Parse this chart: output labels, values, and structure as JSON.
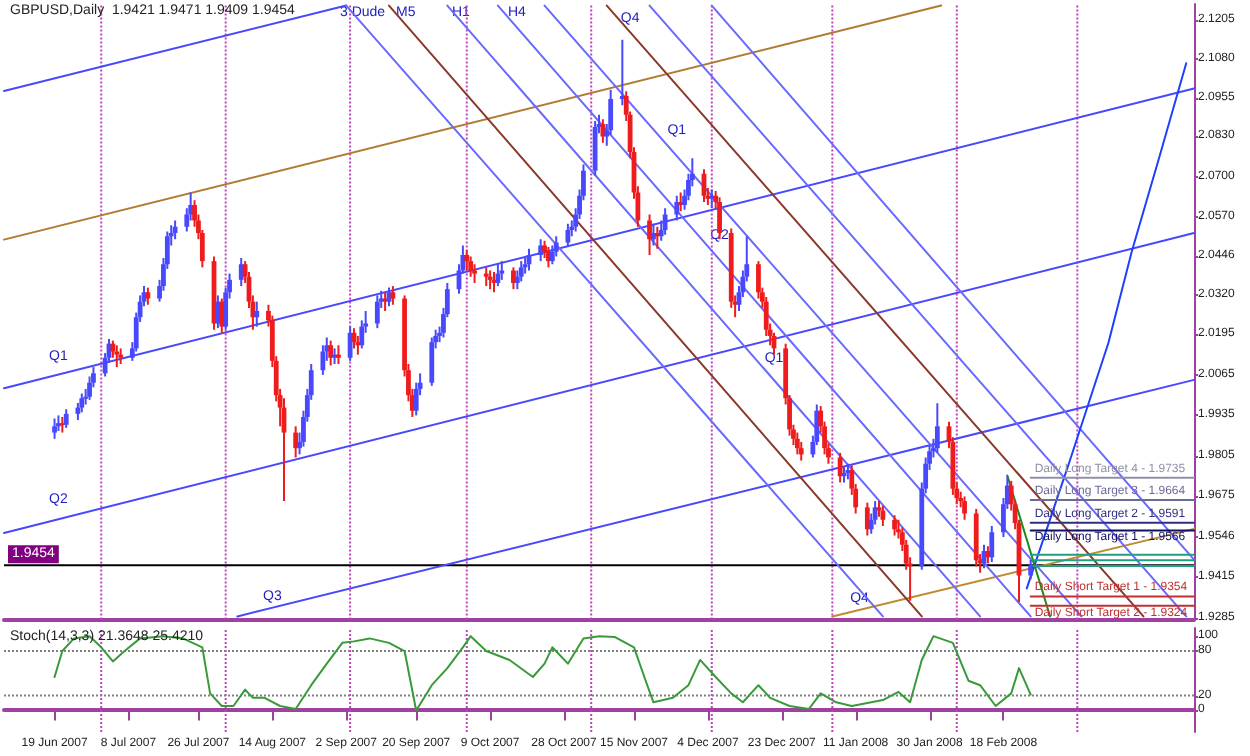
{
  "chart_data": [
    {
      "type": "candlestick",
      "title": "GBPUSD,Daily  1.9421 1.9471 1.9409 1.9454",
      "x": [
        "2007-06-19",
        "2007-06-20",
        "2007-06-21",
        "2007-06-22",
        "2007-06-25",
        "2007-06-26",
        "2007-06-27",
        "2007-06-28",
        "2007-06-29",
        "2007-07-02",
        "2007-07-03",
        "2007-07-04",
        "2007-07-05",
        "2007-07-06",
        "2007-07-09",
        "2007-07-10",
        "2007-07-11",
        "2007-07-12",
        "2007-07-13",
        "2007-07-16",
        "2007-07-17",
        "2007-07-18",
        "2007-07-19",
        "2007-07-20",
        "2007-07-23",
        "2007-07-24",
        "2007-07-25",
        "2007-07-26",
        "2007-07-27",
        "2007-07-30",
        "2007-07-31",
        "2007-08-01",
        "2007-08-02",
        "2007-08-03",
        "2007-08-06",
        "2007-08-07",
        "2007-08-08",
        "2007-08-09",
        "2007-08-10",
        "2007-08-13",
        "2007-08-14",
        "2007-08-15",
        "2007-08-16",
        "2007-08-17",
        "2007-08-20",
        "2007-08-21",
        "2007-08-22",
        "2007-08-23",
        "2007-08-24",
        "2007-08-27",
        "2007-08-28",
        "2007-08-29",
        "2007-08-30",
        "2007-08-31",
        "2007-09-03",
        "2007-09-04",
        "2007-09-05",
        "2007-09-06",
        "2007-09-07",
        "2007-09-10",
        "2007-09-11",
        "2007-09-12",
        "2007-09-13",
        "2007-09-14",
        "2007-09-17",
        "2007-09-18",
        "2007-09-19",
        "2007-09-20",
        "2007-09-21",
        "2007-09-24",
        "2007-09-25",
        "2007-09-26",
        "2007-09-27",
        "2007-09-28",
        "2007-10-01",
        "2007-10-02",
        "2007-10-03",
        "2007-10-04",
        "2007-10-05",
        "2007-10-08",
        "2007-10-09",
        "2007-10-10",
        "2007-10-11",
        "2007-10-12",
        "2007-10-15",
        "2007-10-16",
        "2007-10-17",
        "2007-10-18",
        "2007-10-19",
        "2007-10-22",
        "2007-10-23",
        "2007-10-24",
        "2007-10-25",
        "2007-10-26",
        "2007-10-29",
        "2007-10-30",
        "2007-10-31",
        "2007-11-01",
        "2007-11-02",
        "2007-11-05",
        "2007-11-06",
        "2007-11-07",
        "2007-11-08",
        "2007-11-09",
        "2007-11-12",
        "2007-11-13",
        "2007-11-14",
        "2007-11-15",
        "2007-11-16",
        "2007-11-19",
        "2007-11-20",
        "2007-11-21",
        "2007-11-22",
        "2007-11-23",
        "2007-11-26",
        "2007-11-27",
        "2007-11-28",
        "2007-11-29",
        "2007-11-30",
        "2007-12-03",
        "2007-12-04",
        "2007-12-05",
        "2007-12-06",
        "2007-12-07",
        "2007-12-10",
        "2007-12-11",
        "2007-12-12",
        "2007-12-13",
        "2007-12-14",
        "2007-12-17",
        "2007-12-18",
        "2007-12-19",
        "2007-12-20",
        "2007-12-21",
        "2007-12-24",
        "2007-12-25",
        "2007-12-26",
        "2007-12-27",
        "2007-12-28",
        "2007-12-31",
        "2008-01-01",
        "2008-01-02",
        "2008-01-03",
        "2008-01-04",
        "2008-01-07",
        "2008-01-08",
        "2008-01-09",
        "2008-01-10",
        "2008-01-11",
        "2008-01-14",
        "2008-01-15",
        "2008-01-16",
        "2008-01-17",
        "2008-01-18",
        "2008-01-21",
        "2008-01-22",
        "2008-01-23",
        "2008-01-24",
        "2008-01-25",
        "2008-01-28",
        "2008-01-29",
        "2008-01-30",
        "2008-01-31",
        "2008-02-01",
        "2008-02-04",
        "2008-02-05",
        "2008-02-06",
        "2008-02-07",
        "2008-02-08",
        "2008-02-11",
        "2008-02-12",
        "2008-02-13",
        "2008-02-14",
        "2008-02-15",
        "2008-02-18",
        "2008-02-19",
        "2008-02-20",
        "2008-02-21",
        "2008-02-22",
        "2008-02-25"
      ],
      "ohlc": [
        [
          1.988,
          1.9925,
          1.986,
          1.99
        ],
        [
          1.99,
          1.9935,
          1.9885,
          1.991
        ],
        [
          1.991,
          1.993,
          1.988,
          1.9905
        ],
        [
          1.9905,
          1.9955,
          1.9895,
          1.994
        ],
        [
          1.994,
          1.9975,
          1.992,
          1.996
        ],
        [
          1.996,
          2.0005,
          1.9945,
          1.999
        ],
        [
          1.999,
          2.002,
          1.997,
          1.9995
        ],
        [
          1.9995,
          2.006,
          1.9985,
          2.004
        ],
        [
          2.004,
          2.009,
          2.0025,
          2.007
        ],
        [
          2.007,
          2.0135,
          2.006,
          2.012
        ],
        [
          2.012,
          2.018,
          2.0105,
          2.0165
        ],
        [
          2.0165,
          2.0175,
          2.012,
          2.014
        ],
        [
          2.014,
          2.016,
          2.009,
          2.013
        ],
        [
          2.013,
          2.015,
          2.01,
          2.012
        ],
        [
          2.012,
          2.017,
          2.011,
          2.015
        ],
        [
          2.015,
          2.0265,
          2.014,
          2.025
        ],
        [
          2.025,
          2.032,
          2.0235,
          2.03
        ],
        [
          2.03,
          2.035,
          2.0285,
          2.033
        ],
        [
          2.033,
          2.0345,
          2.029,
          2.031
        ],
        [
          2.031,
          2.037,
          2.03,
          2.035
        ],
        [
          2.035,
          2.044,
          2.0335,
          2.042
        ],
        [
          2.042,
          2.0525,
          2.0405,
          2.051
        ],
        [
          2.051,
          2.0545,
          2.048,
          2.052
        ],
        [
          2.052,
          2.056,
          2.05,
          2.054
        ],
        [
          2.054,
          2.06,
          2.0525,
          2.058
        ],
        [
          2.058,
          2.065,
          2.056,
          2.061
        ],
        [
          2.061,
          2.0625,
          2.054,
          2.056
        ],
        [
          2.056,
          2.058,
          2.05,
          2.052
        ],
        [
          2.052,
          2.053,
          2.041,
          2.043
        ],
        [
          2.043,
          2.0445,
          2.021,
          2.023
        ],
        [
          2.023,
          2.032,
          2.0215,
          2.03
        ],
        [
          2.03,
          2.031,
          2.02,
          2.022
        ],
        [
          2.022,
          2.0345,
          2.021,
          2.033
        ],
        [
          2.033,
          2.039,
          2.031,
          2.037
        ],
        [
          2.037,
          2.044,
          2.035,
          2.042
        ],
        [
          2.042,
          2.043,
          2.036,
          2.038
        ],
        [
          2.038,
          2.0395,
          2.028,
          2.03
        ],
        [
          2.03,
          2.032,
          2.021,
          2.025
        ],
        [
          2.025,
          2.03,
          2.022,
          2.027
        ],
        [
          2.027,
          2.029,
          2.022,
          2.024
        ],
        [
          2.024,
          2.0255,
          2.009,
          2.011
        ],
        [
          2.011,
          2.0125,
          1.998,
          2.0
        ],
        [
          2.0,
          2.002,
          1.99,
          1.996
        ],
        [
          1.996,
          1.999,
          1.966,
          1.988
        ],
        [
          1.988,
          1.99,
          1.98,
          1.983
        ],
        [
          1.983,
          1.988,
          1.981,
          1.985
        ],
        [
          1.985,
          1.995,
          1.9835,
          1.993
        ],
        [
          1.993,
          2.002,
          1.9915,
          2.0
        ],
        [
          2.0,
          2.01,
          1.9985,
          2.008
        ],
        [
          2.008,
          2.016,
          2.0065,
          2.014
        ],
        [
          2.014,
          2.0185,
          2.011,
          2.016
        ],
        [
          2.016,
          2.0175,
          2.0095,
          2.012
        ],
        [
          2.012,
          2.015,
          2.01,
          2.013
        ],
        [
          2.013,
          2.016,
          2.01,
          2.012
        ],
        [
          2.012,
          2.022,
          2.011,
          2.02
        ],
        [
          2.02,
          2.0215,
          2.015,
          2.017
        ],
        [
          2.017,
          2.019,
          2.013,
          2.016
        ],
        [
          2.016,
          2.024,
          2.015,
          2.022
        ],
        [
          2.022,
          2.027,
          2.02,
          2.023
        ],
        [
          2.023,
          2.032,
          2.0215,
          2.03
        ],
        [
          2.03,
          2.0335,
          2.028,
          2.031
        ],
        [
          2.031,
          2.033,
          2.027,
          2.03
        ],
        [
          2.03,
          2.0345,
          2.0285,
          2.033
        ],
        [
          2.033,
          2.035,
          2.029,
          2.031
        ],
        [
          2.031,
          2.032,
          2.006,
          2.008
        ],
        [
          2.008,
          2.01,
          1.998,
          2.0
        ],
        [
          2.0,
          2.002,
          1.993,
          1.995
        ],
        [
          1.995,
          2.004,
          1.9935,
          2.002
        ],
        [
          2.002,
          2.007,
          2.0,
          2.004
        ],
        [
          2.004,
          2.0185,
          2.003,
          2.017
        ],
        [
          2.017,
          2.021,
          2.015,
          2.019
        ],
        [
          2.019,
          2.022,
          2.017,
          2.02
        ],
        [
          2.02,
          2.028,
          2.0185,
          2.026
        ],
        [
          2.026,
          2.036,
          2.025,
          2.034
        ],
        [
          2.034,
          2.042,
          2.0325,
          2.04
        ],
        [
          2.04,
          2.048,
          2.039,
          2.045
        ],
        [
          2.045,
          2.0465,
          2.04,
          2.043
        ],
        [
          2.043,
          2.0445,
          2.038,
          2.04
        ],
        [
          2.04,
          2.042,
          2.036,
          2.039
        ],
        [
          2.039,
          2.041,
          2.035,
          2.038
        ],
        [
          2.038,
          2.04,
          2.034,
          2.037
        ],
        [
          2.037,
          2.0395,
          2.033,
          2.036
        ],
        [
          2.036,
          2.042,
          2.035,
          2.039
        ],
        [
          2.039,
          2.043,
          2.037,
          2.04
        ],
        [
          2.04,
          2.041,
          2.034,
          2.036
        ],
        [
          2.036,
          2.04,
          2.034,
          2.038
        ],
        [
          2.038,
          2.043,
          2.0365,
          2.041
        ],
        [
          2.041,
          2.044,
          2.039,
          2.042
        ],
        [
          2.042,
          2.047,
          2.04,
          2.045
        ],
        [
          2.045,
          2.05,
          2.043,
          2.048
        ],
        [
          2.048,
          2.0495,
          2.044,
          2.046
        ],
        [
          2.046,
          2.0475,
          2.041,
          2.043
        ],
        [
          2.043,
          2.048,
          2.042,
          2.046
        ],
        [
          2.046,
          2.051,
          2.0445,
          2.049
        ],
        [
          2.049,
          2.055,
          2.0475,
          2.053
        ],
        [
          2.053,
          2.056,
          2.051,
          2.054
        ],
        [
          2.054,
          2.06,
          2.0525,
          2.058
        ],
        [
          2.058,
          2.066,
          2.0565,
          2.064
        ],
        [
          2.064,
          2.074,
          2.0625,
          2.072
        ],
        [
          2.072,
          2.088,
          2.0705,
          2.086
        ],
        [
          2.086,
          2.09,
          2.084,
          2.087
        ],
        [
          2.087,
          2.0885,
          2.081,
          2.083
        ],
        [
          2.083,
          2.087,
          2.08,
          2.085
        ],
        [
          2.085,
          2.098,
          2.0835,
          2.095
        ],
        [
          2.095,
          2.114,
          2.093,
          2.096
        ],
        [
          2.096,
          2.0975,
          2.088,
          2.09
        ],
        [
          2.09,
          2.091,
          2.076,
          2.078
        ],
        [
          2.078,
          2.0795,
          2.063,
          2.065
        ],
        [
          2.065,
          2.067,
          2.054,
          2.056
        ],
        [
          2.056,
          2.058,
          2.045,
          2.05
        ],
        [
          2.05,
          2.055,
          2.048,
          2.052
        ],
        [
          2.052,
          2.054,
          2.047,
          2.051
        ],
        [
          2.051,
          2.056,
          2.0495,
          2.053
        ],
        [
          2.053,
          2.06,
          2.0515,
          2.058
        ],
        [
          2.058,
          2.064,
          2.056,
          2.062
        ],
        [
          2.062,
          2.065,
          2.059,
          2.061
        ],
        [
          2.061,
          2.066,
          2.0595,
          2.064
        ],
        [
          2.064,
          2.071,
          2.0625,
          2.069
        ],
        [
          2.069,
          2.076,
          2.067,
          2.071
        ],
        [
          2.071,
          2.0725,
          2.062,
          2.064
        ],
        [
          2.064,
          2.0665,
          2.061,
          2.063
        ],
        [
          2.063,
          2.066,
          2.06,
          2.064
        ],
        [
          2.064,
          2.0655,
          2.06,
          2.062
        ],
        [
          2.062,
          2.0635,
          2.05,
          2.052
        ],
        [
          2.052,
          2.0535,
          2.028,
          2.03
        ],
        [
          2.03,
          2.032,
          2.025,
          2.029
        ],
        [
          2.029,
          2.035,
          2.027,
          2.033
        ],
        [
          2.033,
          2.04,
          2.0315,
          2.038
        ],
        [
          2.038,
          2.051,
          2.0365,
          2.042
        ],
        [
          2.042,
          2.043,
          2.031,
          2.033
        ],
        [
          2.033,
          2.0345,
          2.028,
          2.03
        ],
        [
          2.03,
          2.0315,
          2.019,
          2.021
        ],
        [
          2.021,
          2.023,
          2.016,
          2.019
        ],
        [
          2.019,
          2.02,
          2.013,
          2.015
        ],
        [
          2.015,
          2.0165,
          1.997,
          1.999
        ],
        [
          1.999,
          2.0,
          1.987,
          1.989
        ],
        [
          1.989,
          1.9905,
          1.984,
          1.986
        ],
        [
          1.986,
          1.988,
          1.981,
          1.983
        ],
        [
          1.983,
          1.985,
          1.979,
          1.981
        ],
        [
          1.981,
          1.987,
          1.98,
          1.985
        ],
        [
          1.985,
          1.997,
          1.984,
          1.995
        ],
        [
          1.995,
          1.9965,
          1.988,
          1.99
        ],
        [
          1.99,
          1.9915,
          1.981,
          1.983
        ],
        [
          1.983,
          1.9845,
          1.978,
          1.98
        ],
        [
          1.98,
          1.9815,
          1.972,
          1.974
        ],
        [
          1.974,
          1.977,
          1.972,
          1.975
        ],
        [
          1.975,
          1.978,
          1.973,
          1.976
        ],
        [
          1.976,
          1.9775,
          1.968,
          1.97
        ],
        [
          1.97,
          1.9715,
          1.962,
          1.964
        ],
        [
          1.964,
          1.9655,
          1.955,
          1.957
        ],
        [
          1.957,
          1.962,
          1.9555,
          1.96
        ],
        [
          1.96,
          1.966,
          1.9585,
          1.964
        ],
        [
          1.964,
          1.966,
          1.961,
          1.963
        ],
        [
          1.963,
          1.9645,
          1.958,
          1.96
        ],
        [
          1.96,
          1.9615,
          1.955,
          1.957
        ],
        [
          1.957,
          1.96,
          1.954,
          1.956
        ],
        [
          1.956,
          1.9575,
          1.95,
          1.952
        ],
        [
          1.952,
          1.9535,
          1.944,
          1.946
        ],
        [
          1.946,
          1.948,
          1.934,
          1.945
        ],
        [
          1.945,
          1.972,
          1.944,
          1.97
        ],
        [
          1.97,
          1.98,
          1.9685,
          1.978
        ],
        [
          1.978,
          1.984,
          1.976,
          1.982
        ],
        [
          1.982,
          1.986,
          1.98,
          1.983
        ],
        [
          1.983,
          1.9974,
          1.9815,
          1.99
        ],
        [
          1.99,
          1.9915,
          1.983,
          1.985
        ],
        [
          1.985,
          1.9865,
          1.968,
          1.97
        ],
        [
          1.97,
          1.972,
          1.965,
          1.967
        ],
        [
          1.967,
          1.969,
          1.964,
          1.966
        ],
        [
          1.966,
          1.9675,
          1.96,
          1.962
        ],
        [
          1.962,
          1.9635,
          1.945,
          1.947
        ],
        [
          1.947,
          1.949,
          1.943,
          1.946
        ],
        [
          1.946,
          1.952,
          1.9445,
          1.95
        ],
        [
          1.95,
          1.9515,
          1.946,
          1.948
        ],
        [
          1.948,
          1.958,
          1.9465,
          1.956
        ],
        [
          1.956,
          1.967,
          1.9545,
          1.965
        ],
        [
          1.965,
          1.974,
          1.9635,
          1.971
        ],
        [
          1.971,
          1.9725,
          1.963,
          1.965
        ],
        [
          1.965,
          1.9665,
          1.957,
          1.959
        ],
        [
          1.959,
          1.96,
          1.9336,
          1.9421
        ],
        [
          1.9421,
          1.9471,
          1.9409,
          1.9454
        ]
      ],
      "series": [
        {
          "type": "line",
          "color": "#4848ff",
          "x": [
            "2007-06-06",
            "2007-09-02"
          ],
          "values": [
            2.0976,
            2.125
          ]
        },
        {
          "type": "line",
          "color": "#b07a30",
          "x": [
            "2007-06-06",
            "2008-02-02"
          ],
          "values": [
            2.0499,
            2.125
          ]
        },
        {
          "type": "line",
          "color": "#4848ff",
          "x": [
            "2007-06-06",
            "2008-04-07"
          ],
          "values": [
            2.0022,
            2.0984
          ]
        },
        {
          "type": "line",
          "color": "#4848ff",
          "x": [
            "2007-06-06",
            "2008-04-07"
          ],
          "values": [
            1.9558,
            2.052
          ]
        },
        {
          "type": "line",
          "color": "#4848ff",
          "x": [
            "2007-08-05",
            "2008-04-07"
          ],
          "values": [
            1.929,
            2.0049
          ]
        },
        {
          "type": "line",
          "color": "#c08a30",
          "x": [
            "2008-01-05",
            "2008-04-07"
          ],
          "values": [
            1.929,
            1.9571
          ]
        },
        {
          "type": "line",
          "color": "#6a6aff",
          "x": [
            "2007-09-02",
            "2008-01-18"
          ],
          "values": [
            2.125,
            1.929
          ]
        },
        {
          "type": "line",
          "color": "#8b3a2a",
          "x": [
            "2007-09-13",
            "2008-01-28"
          ],
          "values": [
            2.125,
            1.929
          ]
        },
        {
          "type": "line",
          "color": "#6a6aff",
          "x": [
            "2007-09-28",
            "2008-02-12"
          ],
          "values": [
            2.125,
            1.929
          ]
        },
        {
          "type": "line",
          "color": "#6a6aff",
          "x": [
            "2007-10-11",
            "2008-02-25"
          ],
          "values": [
            2.125,
            1.929
          ]
        },
        {
          "type": "line",
          "color": "#6a6aff",
          "x": [
            "2007-10-23",
            "2008-03-09"
          ],
          "values": [
            2.125,
            1.929
          ]
        },
        {
          "type": "line",
          "color": "#8b3a2a",
          "x": [
            "2007-11-08",
            "2008-03-25"
          ],
          "values": [
            2.125,
            1.929
          ]
        },
        {
          "type": "line",
          "color": "#6a6aff",
          "x": [
            "2007-11-19",
            "2008-04-05"
          ],
          "values": [
            2.125,
            1.929
          ]
        },
        {
          "type": "line",
          "color": "#6a6aff",
          "x": [
            "2007-12-05",
            "2008-04-07"
          ],
          "values": [
            2.125,
            1.9472
          ]
        },
        {
          "type": "line",
          "color": "#1f3fff",
          "x": [
            "2008-02-24",
            "2008-03-06",
            "2008-03-16",
            "2008-03-22",
            "2008-03-29",
            "2008-04-05"
          ],
          "values": [
            1.938,
            1.9787,
            2.0168,
            2.0461,
            2.076,
            2.1065
          ]
        },
        {
          "type": "line",
          "color": "#1a8a1a",
          "x": [
            "2008-02-19",
            "2008-03-01"
          ],
          "values": [
            1.9742,
            1.929
          ]
        },
        {
          "type": "line",
          "name": "Daily Long Target 4 - 1.9735",
          "color": "#9090a8",
          "x": [
            "2008-02-25",
            "2008-04-07"
          ],
          "values": [
            1.9735,
            1.9735
          ]
        },
        {
          "type": "line",
          "name": "Daily Long Target 3 - 1.9664",
          "color": "#6a6a9a",
          "x": [
            "2008-02-25",
            "2008-04-07"
          ],
          "values": [
            1.9664,
            1.9664
          ]
        },
        {
          "type": "line",
          "name": "Daily Long Target 2 - 1.9591",
          "color": "#303080",
          "x": [
            "2008-02-25",
            "2008-04-07"
          ],
          "values": [
            1.9591,
            1.9591
          ]
        },
        {
          "type": "line",
          "name": "Daily Long Target 1 - 1.9566",
          "color": "#101060",
          "x": [
            "2008-02-25",
            "2008-04-07"
          ],
          "values": [
            1.9566,
            1.9566
          ]
        },
        {
          "type": "line",
          "color": "#20a080",
          "x": [
            "2008-02-25",
            "2008-04-07"
          ],
          "values": [
            1.9488,
            1.9488
          ]
        },
        {
          "type": "line",
          "color": "#20a080",
          "x": [
            "2008-02-25",
            "2008-04-07"
          ],
          "values": [
            1.947,
            1.947
          ]
        },
        {
          "type": "line",
          "color": "#20a080",
          "x": [
            "2008-02-25",
            "2008-04-07"
          ],
          "values": [
            1.9452,
            1.9452
          ]
        },
        {
          "type": "line",
          "name": "Daily Short Target 1 - 1.9354",
          "color": "#c03030",
          "x": [
            "2008-02-25",
            "2008-04-07"
          ],
          "values": [
            1.9354,
            1.9354
          ]
        },
        {
          "type": "line",
          "name": "Daily Short Target 2 - 1.9324",
          "color": "#c03030",
          "x": [
            "2008-02-25",
            "2008-04-07"
          ],
          "values": [
            1.9324,
            1.9324
          ]
        }
      ],
      "xlim": [
        "2007-06-06",
        "2008-04-07"
      ],
      "ylim": [
        1.928,
        2.1255
      ],
      "yticks": [
        2.1205,
        {
          "value": 2.108,
          "label": "2.1080"
        },
        2.0955,
        {
          "value": 2.083,
          "label": "2.0830"
        },
        {
          "value": 2.07,
          "label": "2.0700"
        },
        {
          "value": 2.057,
          "label": "2.0570"
        },
        2.0446,
        {
          "value": 2.032,
          "label": "2.0320"
        },
        2.0195,
        2.0065,
        1.9935,
        1.9805,
        1.9675,
        1.9546,
        1.9415,
        1.9285
      ],
      "tick_labels": "y",
      "ref_lines": [
        {
          "axis": "y",
          "value": 1.9454,
          "label": "1.9454",
          "color": "#000000"
        },
        {
          "axis": "x",
          "value": "2007-07-01",
          "color": "#c040c0",
          "line_style": "dotted"
        },
        {
          "axis": "x",
          "value": "2007-08-02",
          "color": "#c040c0",
          "line_style": "dotted"
        },
        {
          "axis": "x",
          "value": "2007-09-03",
          "color": "#c040c0",
          "line_style": "dotted"
        },
        {
          "axis": "x",
          "value": "2007-10-03",
          "color": "#c040c0",
          "line_style": "dotted"
        },
        {
          "axis": "x",
          "value": "2007-11-04",
          "color": "#c040c0",
          "line_style": "dotted"
        },
        {
          "axis": "x",
          "value": "2007-12-05",
          "color": "#c040c0",
          "line_style": "dotted"
        },
        {
          "axis": "x",
          "value": "2008-01-05",
          "color": "#c040c0",
          "line_style": "dotted"
        },
        {
          "axis": "x",
          "value": "2008-02-06",
          "color": "#c040c0",
          "line_style": "dotted"
        },
        {
          "axis": "x",
          "value": "2008-03-08",
          "color": "#c040c0",
          "line_style": "dotted"
        }
      ],
      "annotations": [
        "3 Dude",
        "M5",
        "H1",
        "H4",
        {
          "text": "Q1",
          "x": "2007-06-20",
          "y": 2.0086
        },
        {
          "text": "Q2",
          "x": "2007-06-20",
          "y": 1.9628
        },
        {
          "text": "Q3",
          "x": "2007-08-14",
          "y": 1.9318
        },
        {
          "text": "Q4",
          "x": "2007-11-14",
          "y": 2.1173
        },
        {
          "text": "Q1",
          "x": "2007-11-26",
          "y": 2.0811
        },
        {
          "text": "Q2",
          "x": "2007-12-07",
          "y": 2.0474
        },
        {
          "text": "Q1",
          "x": "2007-12-21",
          "y": 2.008
        },
        {
          "text": "Q4",
          "x": "2008-01-12",
          "y": 1.9311
        }
      ]
    },
    {
      "type": "line",
      "title": "Stoch(14,3,3) 21.3648 25.4210",
      "color": "#3a9a3a",
      "x": [
        "2007-06-19",
        "2007-06-21",
        "2007-06-24",
        "2007-06-28",
        "2007-07-01",
        "2007-07-04",
        "2007-07-07",
        "2007-07-11",
        "2007-07-17",
        "2007-07-22",
        "2007-07-27",
        "2007-07-29",
        "2007-08-01",
        "2007-08-04",
        "2007-08-07",
        "2007-08-09",
        "2007-08-12",
        "2007-08-16",
        "2007-08-20",
        "2007-08-24",
        "2007-08-28",
        "2007-09-01",
        "2007-09-04",
        "2007-09-08",
        "2007-09-13",
        "2007-09-17",
        "2007-09-20",
        "2007-09-24",
        "2007-09-28",
        "2007-10-02",
        "2007-10-04",
        "2007-10-08",
        "2007-10-14",
        "2007-10-20",
        "2007-10-23",
        "2007-10-25",
        "2007-10-29",
        "2007-11-02",
        "2007-11-06",
        "2007-11-10",
        "2007-11-15",
        "2007-11-18",
        "2007-11-20",
        "2007-11-25",
        "2007-11-29",
        "2007-12-02",
        "2007-12-06",
        "2007-12-10",
        "2007-12-13",
        "2007-12-17",
        "2007-12-20",
        "2007-12-25",
        "2007-12-30",
        "2008-01-02",
        "2008-01-06",
        "2008-01-10",
        "2008-01-18",
        "2008-01-22",
        "2008-01-25",
        "2008-01-28",
        "2008-01-31",
        "2008-02-05",
        "2008-02-09",
        "2008-02-12",
        "2008-02-16",
        "2008-02-20",
        "2008-02-22",
        "2008-02-25"
      ],
      "values": [
        45,
        80,
        97,
        100,
        85,
        66,
        80,
        97,
        100,
        97,
        85,
        23,
        6,
        6,
        28,
        17,
        17,
        6,
        2,
        34,
        63,
        91,
        93,
        97,
        91,
        80,
        0,
        34,
        57,
        85,
        100,
        80,
        68,
        45,
        63,
        85,
        63,
        97,
        100,
        99,
        85,
        40,
        11,
        17,
        34,
        68,
        45,
        23,
        11,
        34,
        17,
        6,
        2,
        23,
        11,
        6,
        14,
        25,
        11,
        68,
        100,
        91,
        40,
        34,
        6,
        23,
        57,
        21.3648
      ],
      "xlim": [
        "2007-06-06",
        "2008-04-07"
      ],
      "ylim": [
        -29,
        111
      ],
      "yticks": [
        0,
        20,
        80,
        100
      ],
      "xticks": [
        {
          "value": "2007-06-19",
          "label": "19 Jun 2007"
        },
        {
          "value": "2007-07-08",
          "label": "8 Jul 2007"
        },
        {
          "value": "2007-07-26",
          "label": "26 Jul 2007"
        },
        {
          "value": "2007-08-14",
          "label": "14 Aug 2007"
        },
        {
          "value": "2007-09-02",
          "label": "2 Sep 2007"
        },
        {
          "value": "2007-09-20",
          "label": "20 Sep 2007"
        },
        {
          "value": "2007-10-09",
          "label": "9 Oct 2007"
        },
        {
          "value": "2007-10-28",
          "label": "28 Oct 2007"
        },
        {
          "value": "2007-11-15",
          "label": "15 Nov 2007"
        },
        {
          "value": "2007-12-04",
          "label": "4 Dec 2007"
        },
        {
          "value": "2007-12-23",
          "label": "23 Dec 2007"
        },
        {
          "value": "2008-01-11",
          "label": "11 Jan 2008"
        },
        {
          "value": "2008-01-30",
          "label": "30 Jan 2008"
        },
        {
          "value": "2008-02-18",
          "label": "18 Feb 2008"
        }
      ],
      "ref_lines": [
        {
          "axis": "y",
          "value": 20,
          "color": "#808080",
          "line_style": "dotted"
        },
        {
          "axis": "y",
          "value": 80,
          "color": "#808080",
          "line_style": "dotted"
        },
        {
          "axis": "x",
          "value": "2007-07-01",
          "color": "#c040c0",
          "line_style": "dotted"
        },
        {
          "axis": "x",
          "value": "2007-08-02",
          "color": "#c040c0",
          "line_style": "dotted"
        },
        {
          "axis": "x",
          "value": "2007-09-03",
          "color": "#c040c0",
          "line_style": "dotted"
        },
        {
          "axis": "x",
          "value": "2007-10-03",
          "color": "#c040c0",
          "line_style": "dotted"
        },
        {
          "axis": "x",
          "value": "2007-11-04",
          "color": "#c040c0",
          "line_style": "dotted"
        },
        {
          "axis": "x",
          "value": "2007-12-05",
          "color": "#c040c0",
          "line_style": "dotted"
        },
        {
          "axis": "x",
          "value": "2008-01-05",
          "color": "#c040c0",
          "line_style": "dotted"
        },
        {
          "axis": "x",
          "value": "2008-02-06",
          "color": "#c040c0",
          "line_style": "dotted"
        },
        {
          "axis": "x",
          "value": "2008-03-08",
          "color": "#c040c0",
          "line_style": "dotted"
        }
      ]
    }
  ]
}
